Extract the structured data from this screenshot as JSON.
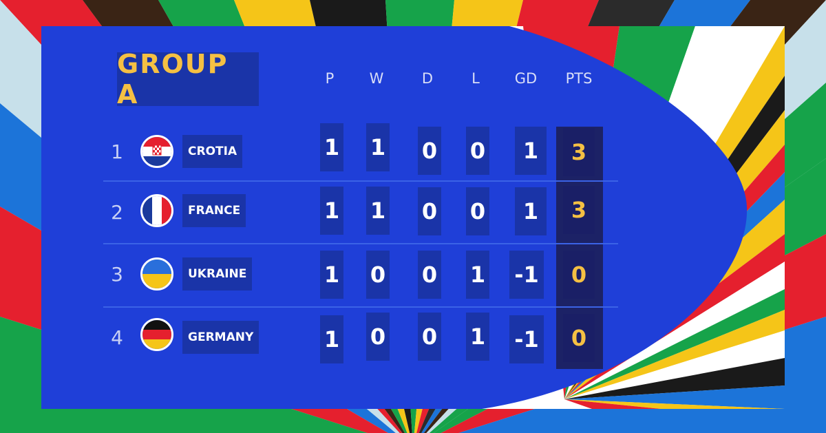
{
  "group": {
    "title": "GROUP  A"
  },
  "columns": [
    "P",
    "W",
    "D",
    "L",
    "GD",
    "PTS"
  ],
  "rows": [
    {
      "rank": "1",
      "team": "CROTIA",
      "flag": "croatia-flag-icon",
      "p": "1",
      "w": "1",
      "d": "0",
      "l": "0",
      "gd": "1",
      "pts": "3"
    },
    {
      "rank": "2",
      "team": "FRANCE",
      "flag": "france-flag-icon",
      "p": "1",
      "w": "1",
      "d": "0",
      "l": "0",
      "gd": "1",
      "pts": "3"
    },
    {
      "rank": "3",
      "team": "UKRAINE",
      "flag": "ukraine-flag-icon",
      "p": "1",
      "w": "0",
      "d": "0",
      "l": "1",
      "gd": "-1",
      "pts": "0"
    },
    {
      "rank": "4",
      "team": "GERMANY",
      "flag": "germany-flag-icon",
      "p": "1",
      "w": "0",
      "d": "0",
      "l": "1",
      "gd": "-1",
      "pts": "0"
    }
  ],
  "colors": {
    "panel_blue": "#1f3fd8",
    "accent_gold": "#f5c043",
    "cell_blue": "#1a34a8",
    "pts_dark": "#1c2266"
  }
}
